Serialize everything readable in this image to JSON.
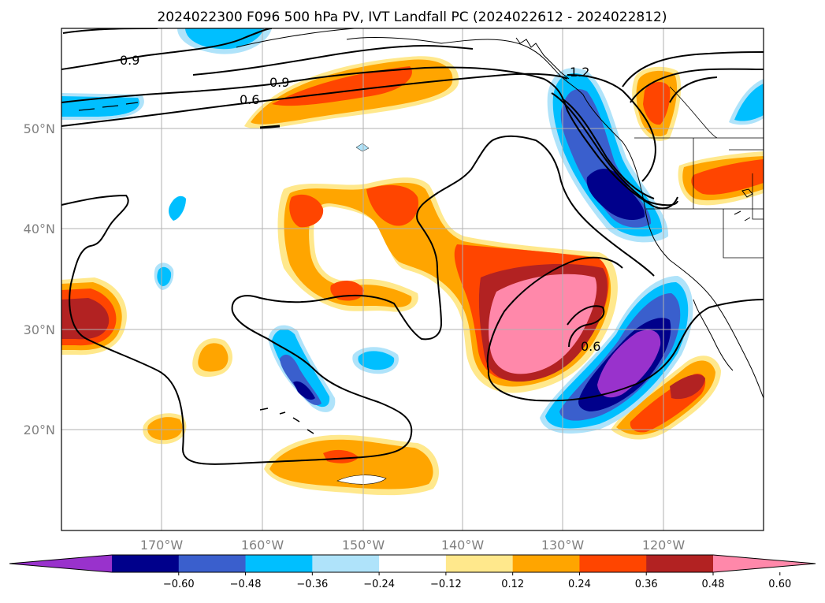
{
  "title": "2024022300 F096 500 hPa PV, IVT Landfall PC (2024022612 - 2024022812)",
  "map": {
    "lon_ticks": [
      "170°W",
      "160°W",
      "150°W",
      "140°W",
      "130°W",
      "120°W"
    ],
    "lat_ticks": [
      "50°N",
      "40°N",
      "30°N",
      "20°N"
    ],
    "grid": true
  },
  "contour_labels": [
    "0.9",
    "0.9",
    "0.6",
    "1.2",
    "0.6"
  ],
  "colorbar": {
    "colors": [
      "#9932CC",
      "#00008B",
      "#3A5FCD",
      "#00BFFF",
      "#AFE3FA",
      "#FFFFFF",
      "#FFE88C",
      "#FFA500",
      "#FF4500",
      "#B22222",
      "#FF88AA"
    ],
    "tick_labels": [
      "−0.60",
      "−0.48",
      "−0.36",
      "−0.24",
      "−0.12",
      "0.12",
      "0.24",
      "0.36",
      "0.48",
      "0.60"
    ],
    "extend": "both"
  }
}
